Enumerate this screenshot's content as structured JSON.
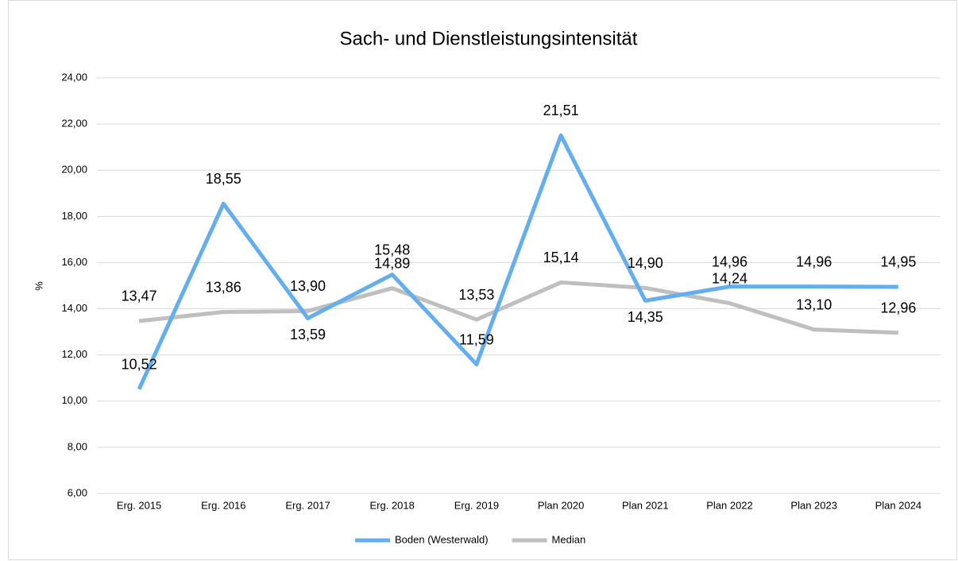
{
  "chart_data": {
    "type": "line",
    "title": "Sach- und Dienstleistungsintensität",
    "y_label": "%",
    "categories": [
      "Erg. 2015",
      "Erg. 2016",
      "Erg. 2017",
      "Erg. 2018",
      "Erg. 2019",
      "Plan 2020",
      "Plan 2021",
      "Plan 2022",
      "Plan 2023",
      "Plan 2024"
    ],
    "series": [
      {
        "name": "Boden (Westerwald)",
        "color": "#63aeef",
        "values": [
          10.52,
          18.55,
          13.59,
          15.48,
          11.59,
          21.51,
          14.35,
          14.96,
          14.96,
          14.95
        ],
        "value_labels": [
          "10,52",
          "18,55",
          "13,59",
          "15,48",
          "11,59",
          "21,51",
          "14,35",
          "14,96",
          "14,96",
          "14,95"
        ]
      },
      {
        "name": "Median",
        "color": "#bfbfbf",
        "values": [
          13.47,
          13.86,
          13.9,
          14.89,
          13.53,
          15.14,
          14.9,
          14.24,
          13.1,
          12.96
        ],
        "value_labels": [
          "13,47",
          "13,86",
          "13,90",
          "14,89",
          "13,53",
          "15,14",
          "14,90",
          "14,24",
          "13,10",
          "12,96"
        ]
      }
    ],
    "ylim": [
      6,
      24
    ],
    "yticks": [
      {
        "value": 6,
        "label": "6,00"
      },
      {
        "value": 8,
        "label": "8,00"
      },
      {
        "value": 10,
        "label": "10,00"
      },
      {
        "value": 12,
        "label": "12,00"
      },
      {
        "value": 14,
        "label": "14,00"
      },
      {
        "value": 16,
        "label": "16,00"
      },
      {
        "value": 18,
        "label": "18,00"
      },
      {
        "value": 20,
        "label": "20,00"
      },
      {
        "value": 22,
        "label": "22,00"
      },
      {
        "value": 24,
        "label": "24,00"
      }
    ],
    "grid": true,
    "legend": "bottom"
  }
}
